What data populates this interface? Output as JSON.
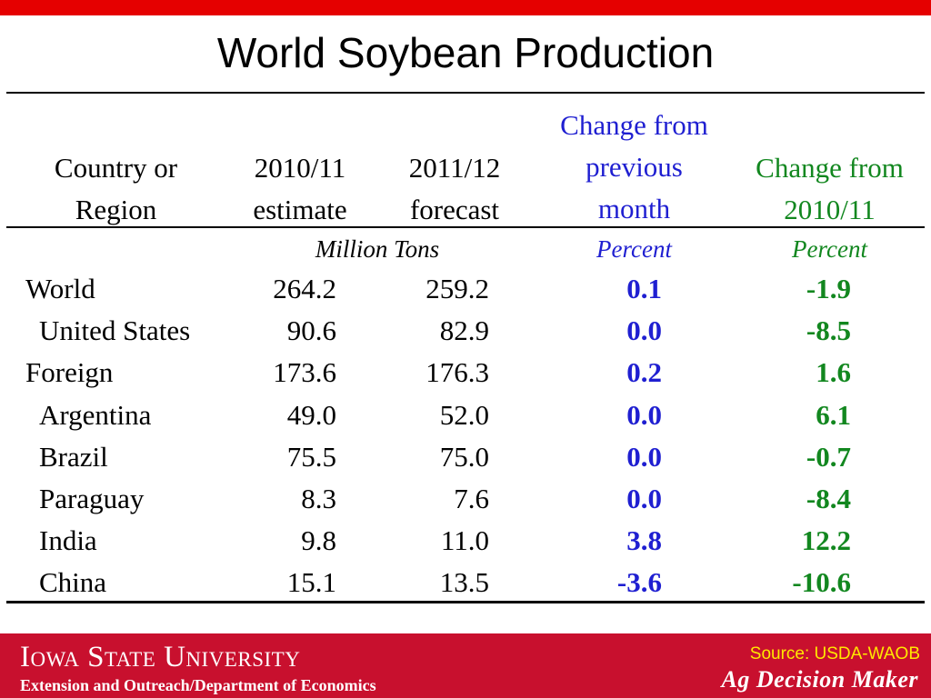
{
  "title": "World Soybean Production",
  "colors": {
    "top_bar": "#e50000",
    "footer": "#c8102e",
    "blue": "#1f1fd1",
    "green": "#12871f",
    "source": "#ffe800"
  },
  "headers": {
    "country": [
      "Country or",
      "Region"
    ],
    "y2010": [
      "2010/11",
      "estimate"
    ],
    "y2011": [
      "2011/12",
      "forecast"
    ],
    "change_prev": [
      "Change from",
      "previous",
      "month"
    ],
    "change_2010": [
      "Change from",
      "2010/11"
    ]
  },
  "units": {
    "tons": "Million Tons",
    "pct_prev": "Percent",
    "pct_2010": "Percent"
  },
  "rows": [
    {
      "name": "World",
      "indent": false,
      "est": "264.2",
      "fcst": "259.2",
      "chg_month": "0.1",
      "chg_year": "-1.9"
    },
    {
      "name": "United States",
      "indent": true,
      "est": "90.6",
      "fcst": "82.9",
      "chg_month": "0.0",
      "chg_year": "-8.5"
    },
    {
      "name": "Foreign",
      "indent": false,
      "est": "173.6",
      "fcst": "176.3",
      "chg_month": "0.2",
      "chg_year": "1.6"
    },
    {
      "name": "Argentina",
      "indent": true,
      "est": "49.0",
      "fcst": "52.0",
      "chg_month": "0.0",
      "chg_year": "6.1"
    },
    {
      "name": "Brazil",
      "indent": true,
      "est": "75.5",
      "fcst": "75.0",
      "chg_month": "0.0",
      "chg_year": "-0.7"
    },
    {
      "name": "Paraguay",
      "indent": true,
      "est": "8.3",
      "fcst": "7.6",
      "chg_month": "0.0",
      "chg_year": "-8.4"
    },
    {
      "name": "India",
      "indent": true,
      "est": "9.8",
      "fcst": "11.0",
      "chg_month": "3.8",
      "chg_year": "12.2"
    },
    {
      "name": "China",
      "indent": true,
      "est": "15.1",
      "fcst": "13.5",
      "chg_month": "-3.6",
      "chg_year": "-10.6"
    }
  ],
  "footer": {
    "university": "Iowa State University",
    "department": "Extension and Outreach/Department of Economics",
    "source": "Source: USDA-WAOB",
    "brand": "Ag Decision Maker"
  }
}
